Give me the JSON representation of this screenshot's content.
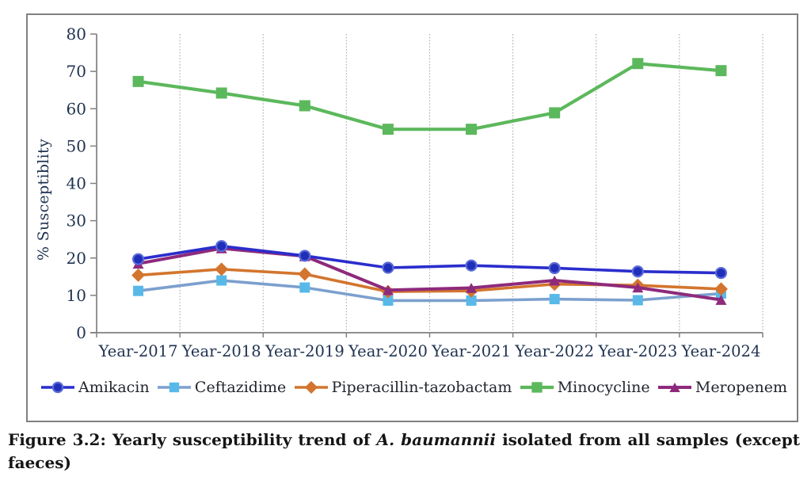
{
  "colors": {
    "frame": "#808080",
    "axis": "#808080",
    "gridline": "#ABABAB",
    "tick_text": "#1F3250",
    "legend_text": "#22252E",
    "caption_text": "#151515",
    "background": "#FFFFFF"
  },
  "chart_data": {
    "type": "line",
    "title": "",
    "xlabel": "",
    "ylabel": "% Susceptiblity",
    "ylim": [
      0,
      80
    ],
    "yticks": [
      0,
      10,
      20,
      30,
      40,
      50,
      60,
      70,
      80
    ],
    "grid": "vertical dotted gridlines between categories, no horizontal gridlines",
    "legend_position": "bottom",
    "categories": [
      "Year-2017",
      "Year-2018",
      "Year-2019",
      "Year-2020",
      "Year-2021",
      "Year-2022",
      "Year-2023",
      "Year-2024"
    ],
    "series": [
      {
        "name": "Amikacin",
        "marker": "circle",
        "color": "#2A2DCC",
        "marker_fill": "#202FBA",
        "marker_stroke": "#5A6BD8",
        "marker_size": 14,
        "line_width": 3.6,
        "values": [
          19.7,
          23.2,
          20.6,
          17.4,
          18.0,
          17.3,
          16.4,
          16.0
        ]
      },
      {
        "name": "Ceftazidime",
        "marker": "square",
        "color": "#7CA0CE",
        "marker_fill": "#58B9E8",
        "marker_stroke": "none",
        "marker_size": 13,
        "line_width": 3.6,
        "values": [
          11.2,
          14.0,
          12.1,
          8.6,
          8.6,
          9.0,
          8.7,
          10.5
        ]
      },
      {
        "name": "Piperacillin-tazobactam",
        "marker": "diamond",
        "color": "#D3752E",
        "marker_fill": "#D3752E",
        "marker_stroke": "none",
        "marker_size": 12,
        "line_width": 3.6,
        "values": [
          15.4,
          17.0,
          15.7,
          11.0,
          11.2,
          13.0,
          12.7,
          11.7
        ]
      },
      {
        "name": "Minocycline",
        "marker": "square",
        "color": "#5CB85C",
        "marker_fill": "#5CB85C",
        "marker_stroke": "none",
        "marker_size": 14,
        "line_width": 4.2,
        "values": [
          67.3,
          64.2,
          60.8,
          54.5,
          54.5,
          58.9,
          72.1,
          70.2
        ]
      },
      {
        "name": "Meropenem",
        "marker": "triangle",
        "color": "#8E2A7C",
        "marker_fill": "#8E2A7C",
        "marker_stroke": "none",
        "marker_size": 14,
        "line_width": 4.0,
        "values": [
          18.5,
          22.6,
          20.5,
          11.4,
          12.0,
          14.0,
          12.1,
          8.8
        ]
      }
    ],
    "draw_order": [
      3,
      1,
      2,
      4,
      0
    ]
  },
  "caption": {
    "prefix": "Figure 3.2: Yearly susceptibility trend of",
    "species": "A. baumannii",
    "suffix": "isolated from all samples (except",
    "line2": "faeces)"
  }
}
